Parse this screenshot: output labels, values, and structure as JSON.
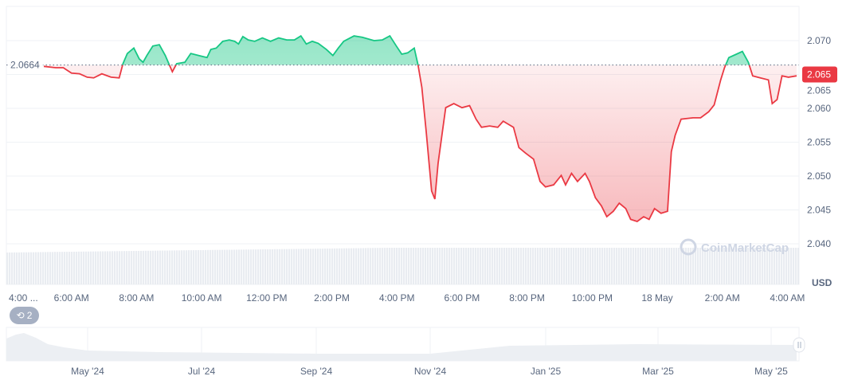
{
  "chart_data": {
    "type": "area",
    "yunit": "USD",
    "ylim": [
      2.038,
      2.0745
    ],
    "yticks": [
      "2.040",
      "2.045",
      "2.050",
      "2.055",
      "2.060",
      "2.065",
      "2.070"
    ],
    "xticks": [
      {
        "t": "2025-05-17T04:00",
        "label": "4:00 ..."
      },
      {
        "t": "2025-05-17T06:00",
        "label": "6:00 AM"
      },
      {
        "t": "2025-05-17T08:00",
        "label": "8:00 AM"
      },
      {
        "t": "2025-05-17T10:00",
        "label": "10:00 AM"
      },
      {
        "t": "2025-05-17T12:00",
        "label": "12:00 PM"
      },
      {
        "t": "2025-05-17T14:00",
        "label": "2:00 PM"
      },
      {
        "t": "2025-05-17T16:00",
        "label": "4:00 PM"
      },
      {
        "t": "2025-05-17T18:00",
        "label": "6:00 PM"
      },
      {
        "t": "2025-05-17T20:00",
        "label": "8:00 PM"
      },
      {
        "t": "2025-05-17T22:00",
        "label": "10:00 PM"
      },
      {
        "t": "2025-05-18T00:00",
        "label": "18 May"
      },
      {
        "t": "2025-05-18T02:00",
        "label": "2:00 AM"
      },
      {
        "t": "2025-05-18T04:00",
        "label": "4:00 AM"
      }
    ],
    "baseline": 2.0664,
    "baseline_label": "2.0664",
    "current_price": 2.065,
    "current_label": "2.065",
    "colors": {
      "up": "#16c784",
      "down": "#ea3943",
      "grid": "#eff2f5"
    },
    "grid": true,
    "points_px_source": "none",
    "series": []
  },
  "navigator": {
    "labels": [
      "May '24",
      "Jul '24",
      "Sep '24",
      "Nov '24",
      "Jan '25",
      "Mar '25",
      "May '25"
    ]
  },
  "badge": {
    "icon": "history-icon",
    "count": "2"
  },
  "watermark": "CoinMarketCap"
}
